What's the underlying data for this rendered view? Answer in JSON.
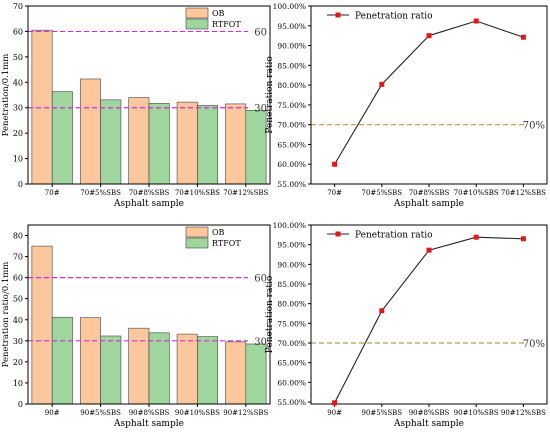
{
  "colors": {
    "ob": "#fcc79c",
    "rtfot": "#9ed69e",
    "bar_stroke": "#444444",
    "ref_magenta": "#cc33cc",
    "ref_orange": "#d4913a",
    "ratio_line": "#222222",
    "ratio_marker": "#e01818"
  },
  "chart_data": [
    {
      "type": "bar",
      "categories": [
        "70#",
        "70#5%SBS",
        "70#8%SBS",
        "70#10%SBS",
        "70#12%SBS"
      ],
      "series": [
        {
          "name": "OB",
          "values": [
            60.5,
            41.3,
            34.0,
            32.2,
            31.5
          ]
        },
        {
          "name": "RTFOT",
          "values": [
            36.3,
            33.1,
            31.7,
            30.9,
            29.0
          ]
        }
      ],
      "xlabel": "Asphalt sample",
      "ylabel": "Penetration/0.1mm",
      "ylim": [
        0,
        70
      ],
      "yticks": [
        0,
        10,
        20,
        30,
        40,
        50,
        60,
        70
      ],
      "reference_lines": [
        {
          "value": 60,
          "label": "60"
        },
        {
          "value": 30,
          "label": "30"
        }
      ],
      "legend_position": "top-right"
    },
    {
      "type": "line",
      "categories": [
        "70#",
        "70#5%SBS",
        "70#8%SBS",
        "70#10%SBS",
        "70#12%SBS"
      ],
      "series": [
        {
          "name": "Penetration ratio",
          "values": [
            60.0,
            80.2,
            92.5,
            96.2,
            92.1
          ]
        }
      ],
      "xlabel": "Asphalt sample",
      "ylabel": "Penetration ratio",
      "ylim": [
        55,
        100
      ],
      "yticks": [
        55,
        60,
        65,
        70,
        75,
        80,
        85,
        90,
        95,
        100
      ],
      "ytick_labels": [
        "55.00%",
        "60.00%",
        "65.00%",
        "70.00%",
        "75.00%",
        "80.00%",
        "85.00%",
        "90.00%",
        "95.00%",
        "100.00%"
      ],
      "reference_lines": [
        {
          "value": 70,
          "label": "70%"
        }
      ],
      "legend_position": "top-left"
    },
    {
      "type": "bar",
      "categories": [
        "90#",
        "90#5%SBS",
        "90#8%SBS",
        "90#10%SBS",
        "90#12%SBS"
      ],
      "series": [
        {
          "name": "OB",
          "values": [
            75.0,
            41.0,
            36.0,
            33.2,
            29.5
          ]
        },
        {
          "name": "RTFOT",
          "values": [
            41.2,
            32.3,
            33.8,
            32.0,
            28.5
          ]
        }
      ],
      "xlabel": "Asphalt sample",
      "ylabel": "Penetration ratio/0.1mm",
      "ylim": [
        0,
        85
      ],
      "yticks": [
        0,
        10,
        20,
        30,
        40,
        50,
        60,
        70,
        80
      ],
      "reference_lines": [
        {
          "value": 60,
          "label": "60"
        },
        {
          "value": 30,
          "label": "30"
        }
      ],
      "legend_position": "top-right"
    },
    {
      "type": "line",
      "categories": [
        "90#",
        "90#5%SBS",
        "90#8%SBS",
        "90#10%SBS",
        "90#12%SBS"
      ],
      "series": [
        {
          "name": "Penetration ratio",
          "values": [
            54.8,
            78.2,
            93.6,
            96.9,
            96.5
          ]
        }
      ],
      "xlabel": "Asphalt sample",
      "ylabel": "Penetration ratio",
      "ylim": [
        54.5,
        100
      ],
      "yticks": [
        55,
        60,
        65,
        70,
        75,
        80,
        85,
        90,
        95,
        100
      ],
      "ytick_labels": [
        "55.00%",
        "60.00%",
        "65.00%",
        "70.00%",
        "75.00%",
        "80.00%",
        "85.00%",
        "90.00%",
        "95.00%",
        "100.00%"
      ],
      "reference_lines": [
        {
          "value": 70,
          "label": "70%"
        }
      ],
      "legend_position": "top-left"
    }
  ]
}
